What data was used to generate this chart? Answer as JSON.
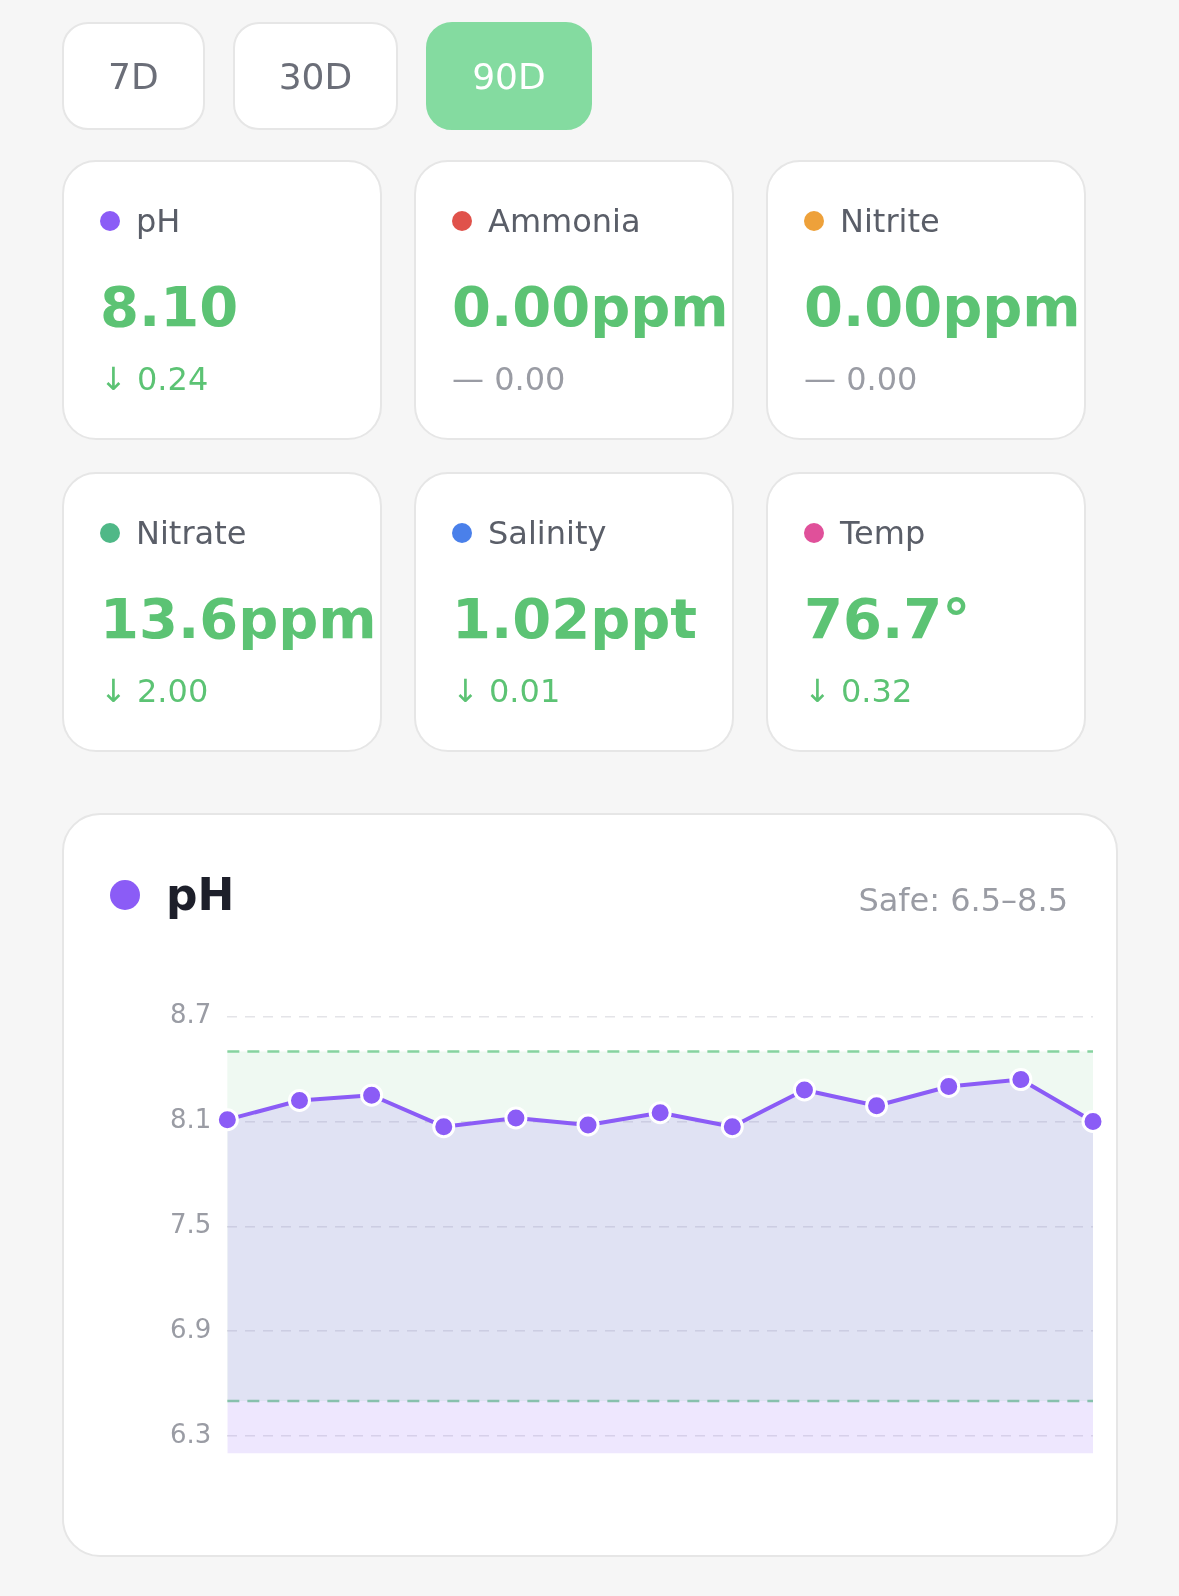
{
  "chart_data": [
    {
      "type": "other",
      "annotations": [
        "7D",
        "30D",
        "90D"
      ]
    },
    {
      "type": "other",
      "title": "pH",
      "annotations": [
        "8.10",
        "↓ 0.24"
      ]
    },
    {
      "type": "other",
      "title": "Ammonia",
      "annotations": [
        "0.00ppm",
        "— 0.00"
      ]
    },
    {
      "type": "other",
      "title": "Nitrite",
      "annotations": [
        "0.00ppm",
        "— 0.00"
      ]
    },
    {
      "type": "other",
      "title": "Nitrate",
      "annotations": [
        "13.6ppm",
        "↓ 2.00"
      ]
    },
    {
      "type": "other",
      "title": "Salinity",
      "annotations": [
        "1.02ppt",
        "↓ 0.01"
      ]
    },
    {
      "type": "other",
      "title": "Temp",
      "annotations": [
        "76.7°",
        "↓ 0.32"
      ]
    },
    {
      "type": "area",
      "title": "pH",
      "categories": [
        null,
        null,
        null,
        null,
        null,
        null,
        null,
        null,
        null,
        null,
        null,
        null,
        null
      ],
      "series": [
        {
          "color": "#8b5cf6",
          "values": [
            8.11,
            8.22,
            8.25,
            8.07,
            8.12,
            8.08,
            8.15,
            8.07,
            8.28,
            8.19,
            8.3,
            8.34,
            8.1
          ]
        }
      ],
      "ylim": [
        6.2,
        8.7
      ],
      "yticks": [
        6.3,
        6.9,
        7.5,
        8.1,
        8.7
      ],
      "grid": "y",
      "legend": false,
      "marker": "circle",
      "tick_labels": "y",
      "annotations": [
        "Safe: 6.5–8.5"
      ],
      "bands": [
        {
          "axis": "y",
          "from": 6.5,
          "to": 8.5,
          "color": "#86d3a0"
        }
      ],
      "ref_lines": [
        {
          "axis": "y",
          "value": 8.5,
          "color": "#86d3a0",
          "line_style": "dashed"
        },
        {
          "axis": "y",
          "value": 6.5,
          "color": "#86d3a0",
          "line_style": "dashed"
        }
      ]
    }
  ]
}
